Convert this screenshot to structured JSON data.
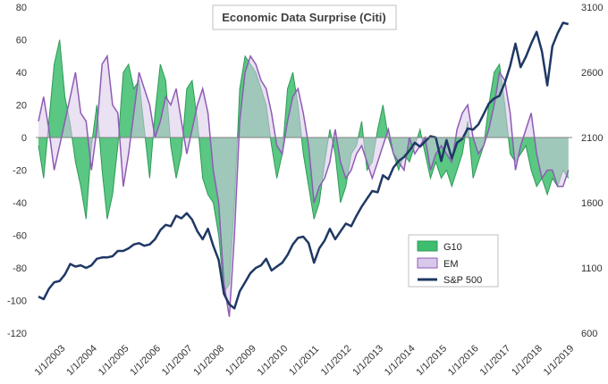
{
  "chart_data": {
    "type": "area",
    "title": "Economic Data Surprise (Citi)",
    "xlabel": "",
    "ylabel": "",
    "ylim": [
      -120,
      80
    ],
    "y2lim": [
      600,
      3100
    ],
    "yticks": [
      -120,
      -100,
      -80,
      -60,
      -40,
      -20,
      0,
      20,
      40,
      60,
      80
    ],
    "y2ticks": [
      600,
      1100,
      1600,
      2100,
      2600,
      3100
    ],
    "xlim": [
      "2002-12-01",
      "2019-10-15"
    ],
    "xticks": [
      "1/1/2003",
      "1/1/2004",
      "1/1/2005",
      "1/1/2006",
      "1/1/2007",
      "1/1/2008",
      "1/1/2009",
      "1/1/2010",
      "1/1/2011",
      "1/1/2012",
      "1/1/2013",
      "1/1/2014",
      "1/1/2015",
      "1/1/2016",
      "1/1/2017",
      "1/1/2018",
      "1/1/2019"
    ],
    "grid": false,
    "legend_position": "lower-right",
    "colors": {
      "g10_fill": "#3dbd6d",
      "g10_line": "#2e9a57",
      "em_fill": "#d9c8ea",
      "em_line": "#8e5bb5",
      "spx": "#1f3864"
    },
    "x": [
      "2003-01",
      "2003-03",
      "2003-05",
      "2003-07",
      "2003-09",
      "2003-11",
      "2004-01",
      "2004-03",
      "2004-05",
      "2004-07",
      "2004-09",
      "2004-11",
      "2005-01",
      "2005-03",
      "2005-05",
      "2005-07",
      "2005-09",
      "2005-11",
      "2006-01",
      "2006-03",
      "2006-05",
      "2006-07",
      "2006-09",
      "2006-11",
      "2007-01",
      "2007-03",
      "2007-05",
      "2007-07",
      "2007-09",
      "2007-11",
      "2008-01",
      "2008-03",
      "2008-05",
      "2008-07",
      "2008-09",
      "2008-11",
      "2009-01",
      "2009-03",
      "2009-05",
      "2009-07",
      "2009-09",
      "2009-11",
      "2010-01",
      "2010-03",
      "2010-05",
      "2010-07",
      "2010-09",
      "2010-11",
      "2011-01",
      "2011-03",
      "2011-05",
      "2011-07",
      "2011-09",
      "2011-11",
      "2012-01",
      "2012-03",
      "2012-05",
      "2012-07",
      "2012-09",
      "2012-11",
      "2013-01",
      "2013-03",
      "2013-05",
      "2013-07",
      "2013-09",
      "2013-11",
      "2014-01",
      "2014-03",
      "2014-05",
      "2014-07",
      "2014-09",
      "2014-11",
      "2015-01",
      "2015-03",
      "2015-05",
      "2015-07",
      "2015-09",
      "2015-11",
      "2016-01",
      "2016-03",
      "2016-05",
      "2016-07",
      "2016-09",
      "2016-11",
      "2017-01",
      "2017-03",
      "2017-05",
      "2017-07",
      "2017-09",
      "2017-11",
      "2018-01",
      "2018-03",
      "2018-05",
      "2018-07",
      "2018-09",
      "2018-11",
      "2019-01",
      "2019-03",
      "2019-05",
      "2019-07",
      "2019-09"
    ],
    "series": [
      {
        "name": "G10",
        "kind": "area",
        "values": [
          -5,
          -25,
          10,
          45,
          60,
          25,
          8,
          -15,
          -30,
          -50,
          -5,
          20,
          -20,
          -50,
          -35,
          -5,
          40,
          45,
          30,
          35,
          5,
          -25,
          15,
          45,
          35,
          -5,
          -25,
          -10,
          30,
          35,
          10,
          -25,
          -35,
          -40,
          -60,
          -95,
          -90,
          -40,
          30,
          50,
          45,
          40,
          30,
          20,
          -5,
          -25,
          -10,
          30,
          40,
          20,
          -10,
          -30,
          -50,
          -40,
          -15,
          5,
          -10,
          -40,
          -30,
          -10,
          -5,
          10,
          -20,
          -15,
          5,
          20,
          0,
          -10,
          -20,
          -10,
          -15,
          -5,
          5,
          -10,
          -25,
          -15,
          -25,
          -20,
          -30,
          -20,
          -10,
          10,
          -25,
          -15,
          -5,
          20,
          40,
          45,
          20,
          -10,
          -15,
          -10,
          -5,
          -20,
          -30,
          -25,
          -35,
          -25,
          -30,
          -20,
          -25
        ]
      },
      {
        "name": "EM",
        "kind": "area",
        "values": [
          10,
          25,
          5,
          -20,
          -5,
          10,
          25,
          40,
          15,
          10,
          -20,
          5,
          45,
          50,
          20,
          15,
          -30,
          -10,
          15,
          40,
          30,
          20,
          0,
          10,
          25,
          20,
          30,
          10,
          -10,
          5,
          20,
          30,
          15,
          -20,
          -40,
          -90,
          -110,
          -60,
          10,
          40,
          50,
          45,
          35,
          30,
          15,
          -5,
          -10,
          10,
          25,
          30,
          15,
          -5,
          -40,
          -30,
          -25,
          -15,
          5,
          -15,
          -25,
          -20,
          -10,
          -5,
          -15,
          -25,
          -15,
          -5,
          5,
          -10,
          -15,
          -20,
          0,
          -10,
          -5,
          0,
          -20,
          -10,
          -5,
          -10,
          -15,
          5,
          15,
          20,
          0,
          -10,
          -5,
          5,
          20,
          40,
          35,
          15,
          -20,
          -5,
          5,
          15,
          -10,
          -25,
          -20,
          -20,
          -30,
          -30,
          -20
        ]
      },
      {
        "name": "S&P 500",
        "kind": "line",
        "axis": "right",
        "values": [
          880,
          860,
          940,
          990,
          1000,
          1050,
          1130,
          1110,
          1120,
          1100,
          1120,
          1170,
          1180,
          1180,
          1190,
          1230,
          1230,
          1250,
          1280,
          1290,
          1270,
          1280,
          1320,
          1390,
          1430,
          1420,
          1500,
          1480,
          1520,
          1470,
          1380,
          1320,
          1400,
          1270,
          1160,
          900,
          820,
          790,
          920,
          990,
          1060,
          1100,
          1120,
          1170,
          1080,
          1110,
          1140,
          1200,
          1280,
          1330,
          1340,
          1290,
          1140,
          1250,
          1310,
          1400,
          1320,
          1380,
          1440,
          1420,
          1500,
          1570,
          1630,
          1690,
          1680,
          1810,
          1780,
          1870,
          1920,
          1950,
          2000,
          2060,
          2030,
          2070,
          2110,
          2100,
          1920,
          2080,
          1940,
          2060,
          2090,
          2170,
          2160,
          2200,
          2280,
          2360,
          2400,
          2420,
          2520,
          2650,
          2820,
          2640,
          2720,
          2820,
          2910,
          2760,
          2500,
          2800,
          2900,
          2980,
          2970
        ]
      }
    ]
  }
}
